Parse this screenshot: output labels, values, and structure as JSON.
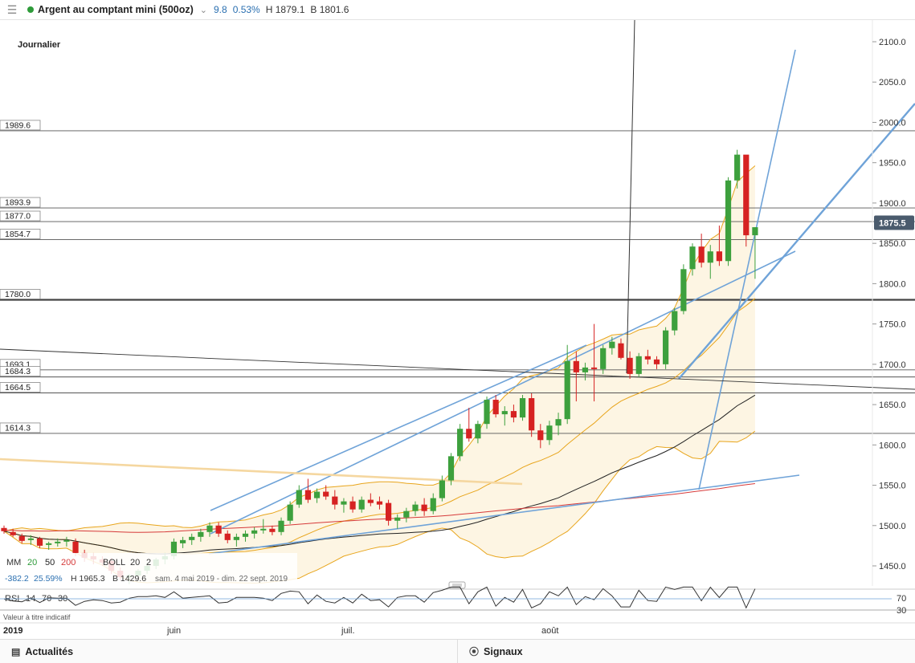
{
  "header": {
    "menu_icon": "hamburger-menu-icon",
    "instrument": "Argent au comptant mini (500oz)",
    "status_color": "#2e9b3a",
    "change": "9.8",
    "change_pct": "0.53%",
    "high": "H 1879.1",
    "bid": "B 1801.6"
  },
  "chart_data": {
    "type": "candlestick",
    "period_label": "Journalier",
    "year_label": "2019",
    "month_labels": [
      "juin",
      "juil.",
      "août"
    ],
    "y_ticks": [
      1450,
      1500,
      1550,
      1600,
      1650,
      1700,
      1750,
      1800,
      1850,
      1900,
      1950,
      2000,
      2050,
      2100
    ],
    "y_tick_labels": [
      "1450.0",
      "1500.0",
      "1550.0",
      "1600.0",
      "1650.0",
      "1700.0",
      "1750.0",
      "1800.0",
      "1850.0",
      "1900.0",
      "1950.0",
      "2000.0",
      "2050.0",
      "2100.0"
    ],
    "ylim": [
      1420,
      2130
    ],
    "current_price": "1875.5",
    "horizontal_levels": [
      {
        "label": "1989.6",
        "value": 1989.6,
        "bold": false
      },
      {
        "label": "1893.9",
        "value": 1893.9,
        "bold": false
      },
      {
        "label": "1877.0",
        "value": 1877.0,
        "bold": false
      },
      {
        "label": "1854.7",
        "value": 1854.7,
        "bold": false
      },
      {
        "label": "1780.0",
        "value": 1780.0,
        "bold": true
      },
      {
        "label": "1693.1",
        "value": 1693.1,
        "bold": false
      },
      {
        "label": "1684.3",
        "value": 1684.3,
        "bold": false
      },
      {
        "label": "1664.5",
        "value": 1664.5,
        "bold": false
      },
      {
        "label": "1614.3",
        "value": 1614.3,
        "bold": false
      }
    ],
    "candles": [
      [
        1497,
        1500,
        1490,
        1493
      ],
      [
        1492,
        1496,
        1486,
        1488
      ],
      [
        1487,
        1490,
        1478,
        1481
      ],
      [
        1482,
        1488,
        1476,
        1484
      ],
      [
        1484,
        1486,
        1472,
        1475
      ],
      [
        1476,
        1480,
        1470,
        1478
      ],
      [
        1478,
        1484,
        1474,
        1480
      ],
      [
        1480,
        1486,
        1474,
        1482
      ],
      [
        1480,
        1484,
        1462,
        1466
      ],
      [
        1466,
        1470,
        1455,
        1460
      ],
      [
        1462,
        1466,
        1452,
        1458
      ],
      [
        1458,
        1462,
        1450,
        1454
      ],
      [
        1456,
        1460,
        1440,
        1444
      ],
      [
        1444,
        1448,
        1432,
        1436
      ],
      [
        1436,
        1440,
        1428,
        1438
      ],
      [
        1438,
        1446,
        1434,
        1444
      ],
      [
        1444,
        1454,
        1440,
        1450
      ],
      [
        1450,
        1460,
        1446,
        1458
      ],
      [
        1458,
        1466,
        1452,
        1462
      ],
      [
        1462,
        1484,
        1458,
        1480
      ],
      [
        1478,
        1486,
        1472,
        1482
      ],
      [
        1482,
        1490,
        1476,
        1486
      ],
      [
        1486,
        1496,
        1480,
        1492
      ],
      [
        1492,
        1504,
        1486,
        1500
      ],
      [
        1500,
        1504,
        1486,
        1490
      ],
      [
        1490,
        1494,
        1478,
        1482
      ],
      [
        1482,
        1490,
        1474,
        1486
      ],
      [
        1486,
        1494,
        1480,
        1490
      ],
      [
        1490,
        1498,
        1484,
        1494
      ],
      [
        1494,
        1508,
        1490,
        1496
      ],
      [
        1496,
        1500,
        1488,
        1492
      ],
      [
        1492,
        1510,
        1488,
        1506
      ],
      [
        1506,
        1530,
        1502,
        1526
      ],
      [
        1526,
        1550,
        1522,
        1544
      ],
      [
        1544,
        1558,
        1528,
        1532
      ],
      [
        1534,
        1546,
        1528,
        1542
      ],
      [
        1542,
        1550,
        1532,
        1536
      ],
      [
        1536,
        1544,
        1520,
        1526
      ],
      [
        1526,
        1534,
        1516,
        1530
      ],
      [
        1530,
        1536,
        1516,
        1520
      ],
      [
        1520,
        1536,
        1516,
        1532
      ],
      [
        1532,
        1540,
        1524,
        1528
      ],
      [
        1530,
        1536,
        1520,
        1526
      ],
      [
        1528,
        1532,
        1500,
        1506
      ],
      [
        1506,
        1514,
        1496,
        1510
      ],
      [
        1510,
        1522,
        1504,
        1518
      ],
      [
        1518,
        1530,
        1512,
        1526
      ],
      [
        1526,
        1534,
        1512,
        1518
      ],
      [
        1518,
        1540,
        1514,
        1534
      ],
      [
        1534,
        1562,
        1530,
        1556
      ],
      [
        1556,
        1590,
        1550,
        1586
      ],
      [
        1586,
        1626,
        1580,
        1620
      ],
      [
        1620,
        1646,
        1604,
        1608
      ],
      [
        1608,
        1630,
        1602,
        1626
      ],
      [
        1626,
        1660,
        1620,
        1656
      ],
      [
        1656,
        1662,
        1634,
        1638
      ],
      [
        1638,
        1648,
        1624,
        1642
      ],
      [
        1642,
        1650,
        1628,
        1634
      ],
      [
        1634,
        1662,
        1630,
        1658
      ],
      [
        1658,
        1664,
        1610,
        1618
      ],
      [
        1618,
        1626,
        1596,
        1606
      ],
      [
        1606,
        1630,
        1600,
        1624
      ],
      [
        1624,
        1640,
        1612,
        1632
      ],
      [
        1632,
        1724,
        1626,
        1704
      ],
      [
        1704,
        1716,
        1654,
        1690
      ],
      [
        1690,
        1702,
        1680,
        1696
      ],
      [
        1696,
        1750,
        1654,
        1694
      ],
      [
        1694,
        1724,
        1688,
        1720
      ],
      [
        1720,
        1734,
        1712,
        1728
      ],
      [
        1726,
        1732,
        1706,
        1708
      ],
      [
        1708,
        1716,
        1682,
        1688
      ],
      [
        1688,
        1714,
        1684,
        1710
      ],
      [
        1710,
        1718,
        1700,
        1706
      ],
      [
        1706,
        1710,
        1694,
        1700
      ],
      [
        1700,
        1746,
        1694,
        1742
      ],
      [
        1742,
        1770,
        1736,
        1766
      ],
      [
        1766,
        1824,
        1762,
        1818
      ],
      [
        1818,
        1850,
        1810,
        1846
      ],
      [
        1846,
        1862,
        1820,
        1826
      ],
      [
        1826,
        1848,
        1806,
        1840
      ],
      [
        1840,
        1872,
        1822,
        1828
      ],
      [
        1828,
        1932,
        1822,
        1928
      ],
      [
        1928,
        1966,
        1918,
        1960
      ],
      [
        1960,
        1958,
        1846,
        1860
      ],
      [
        1860,
        1870,
        1806,
        1870
      ]
    ],
    "moving_averages": [
      {
        "period": 20,
        "color": "#e8a51c"
      },
      {
        "period": 50,
        "color": "#222222"
      },
      {
        "period": 200,
        "color": "#d63a3a"
      }
    ],
    "bollinger": {
      "period": 20,
      "stddev": 2,
      "band_color": "#e8a51c",
      "fill_color": "#fdf5e3"
    },
    "rsi": {
      "params": [
        "14",
        "70",
        "30"
      ],
      "levels": [
        "70",
        "30"
      ]
    }
  },
  "legend": {
    "ma_label": "MM",
    "ma_values": [
      "20",
      "50",
      "200"
    ],
    "ma_colors": [
      "#2e9b3a",
      "#222222",
      "#d63a3a"
    ],
    "boll_label": "BOLL",
    "boll_values": [
      "20",
      "2"
    ],
    "range_low": "-382.2",
    "range_pct": "25.59%",
    "range_high": "H 1965.3",
    "range_bid": "B 1429.6",
    "range_dates": "sam. 4 mai 2019 - dim. 22 sept. 2019",
    "rsi_label": "RSI",
    "disclaimer": "Valeur à titre indicatif"
  },
  "footer": {
    "news_label": "Actualités",
    "news_icon": "news-icon",
    "signals_label": "Signaux",
    "signals_icon": "signal-icon"
  },
  "colors": {
    "up": "#3da03d",
    "down": "#d62222",
    "trendline": "#6fa3d8",
    "price_badge": "#4a5b6d"
  }
}
